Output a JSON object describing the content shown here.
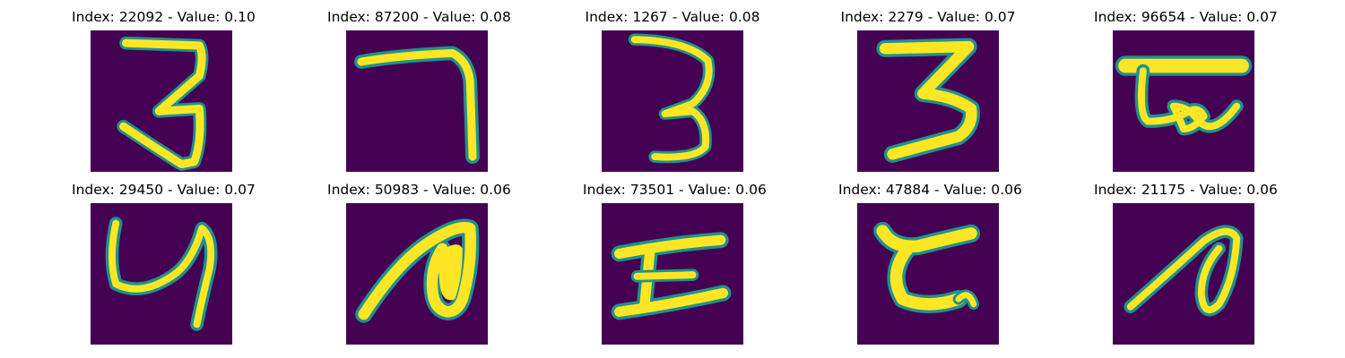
{
  "colormap": {
    "background": "#440154",
    "low": "#3b528b",
    "mid": "#21918c",
    "high": "#5ec962",
    "peak": "#fde725"
  },
  "panels": [
    {
      "title": "Index: 22092 - Value: 0.10",
      "glyph": "digit-3"
    },
    {
      "title": "Index: 87200 - Value: 0.08",
      "glyph": "digit-7"
    },
    {
      "title": "Index: 1267 - Value: 0.08",
      "glyph": "digit-3"
    },
    {
      "title": "Index: 2279 - Value: 0.07",
      "glyph": "letter-z-3"
    },
    {
      "title": "Index: 96654 - Value: 0.07",
      "glyph": "bar-loop"
    },
    {
      "title": "Index: 29450 - Value: 0.07",
      "glyph": "digit-4"
    },
    {
      "title": "Index: 50983 - Value: 0.06",
      "glyph": "filled-arch"
    },
    {
      "title": "Index: 73501 - Value: 0.06",
      "glyph": "letter-i"
    },
    {
      "title": "Index: 47884 - Value: 0.06",
      "glyph": "letter-c-bars"
    },
    {
      "title": "Index: 21175 - Value: 0.06",
      "glyph": "loop-stroke"
    }
  ]
}
